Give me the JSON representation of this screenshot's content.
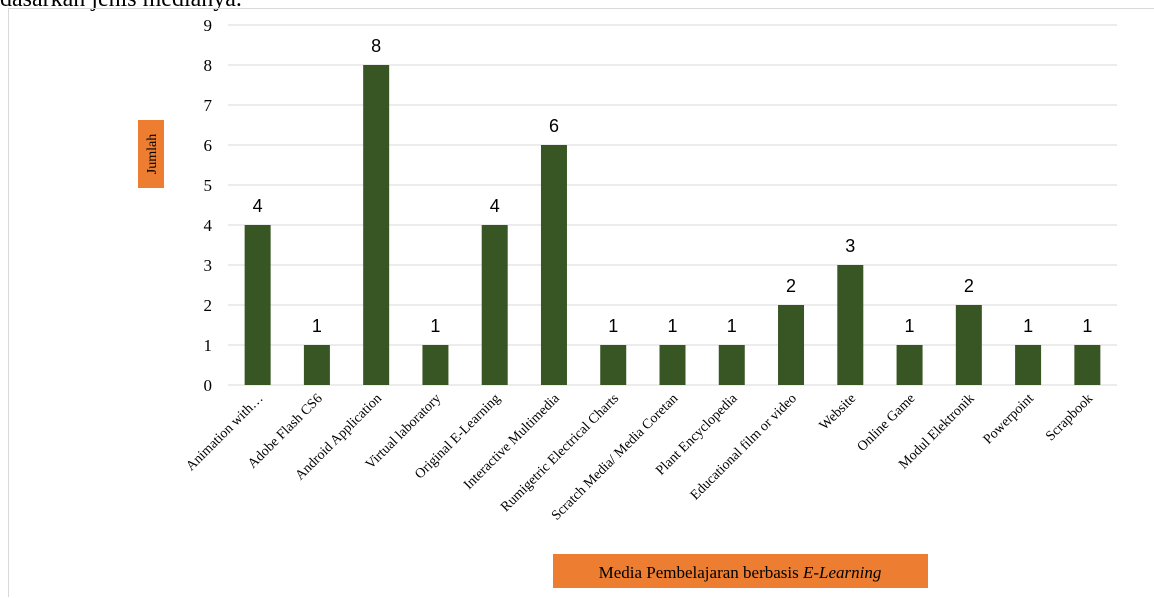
{
  "document": {
    "text_above": "dasarkan jenis medianya."
  },
  "chart_data": {
    "type": "bar",
    "categories": [
      "Animation with…",
      "Adobe Flash CS6",
      "Android  Application",
      "Virtual laboratory",
      "Original E-Learning",
      "Interactive Multimedia",
      "Rumigetric Electrical Charts",
      "Scratch Media/ Media Coretan",
      "Plant Encyclopedia",
      "Educational film or video",
      "Website",
      "Online Game",
      "Modul Elektronik",
      "Powerpoint",
      "Scrapbook"
    ],
    "values": [
      4,
      1,
      8,
      1,
      4,
      6,
      1,
      1,
      1,
      2,
      3,
      1,
      2,
      1,
      1
    ],
    "ylabel": "Jumlah",
    "xlabel_prefix": "Media Pembelajaran berbasis ",
    "xlabel_italic": "E-Learning",
    "ylim": [
      0,
      9
    ],
    "yticks": [
      0,
      1,
      2,
      3,
      4,
      5,
      6,
      7,
      8,
      9
    ],
    "grid": true,
    "data_labels": true,
    "colors": {
      "bar": "#375623",
      "label_box": "#ed7d31",
      "grid": "#d9d9d9"
    }
  }
}
